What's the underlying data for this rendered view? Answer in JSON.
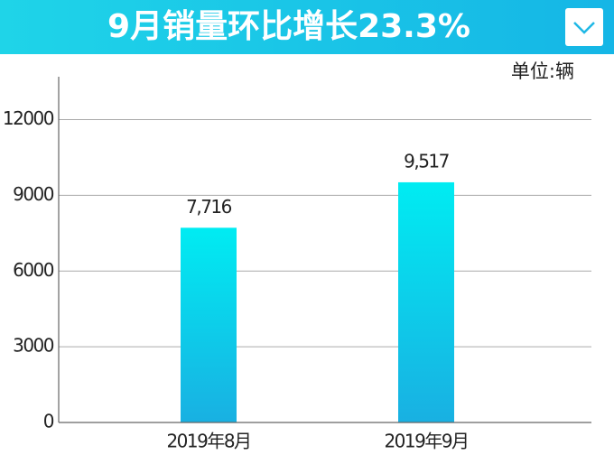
{
  "chart_data": {
    "type": "bar",
    "title": "9月销量环比增长23.3%",
    "unit_label": "单位:辆",
    "categories": [
      "2019年8月",
      "2019年9月"
    ],
    "values": [
      7716,
      9517
    ],
    "value_labels": [
      "7,716",
      "9,517"
    ],
    "ylim": [
      0,
      13700
    ],
    "yticks": [
      0,
      3000,
      6000,
      9000,
      12000
    ],
    "grid": true
  }
}
